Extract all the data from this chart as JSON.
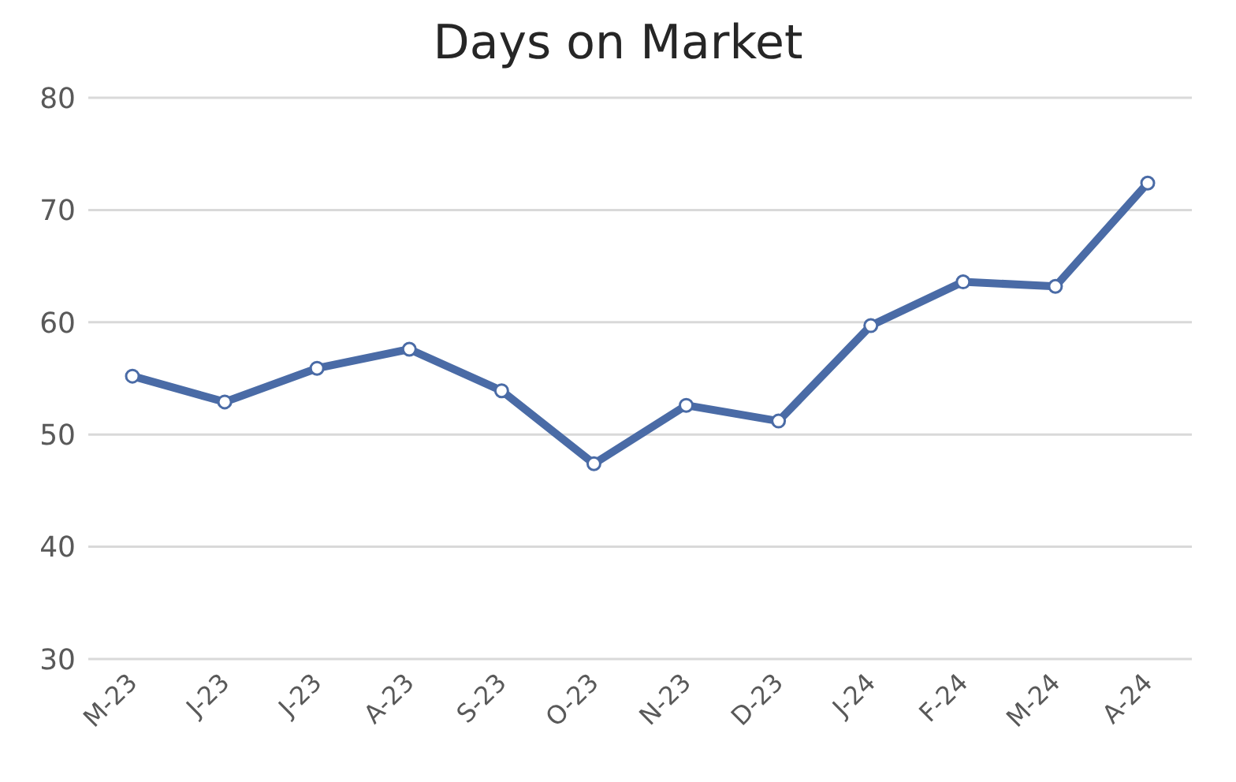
{
  "chart_data": {
    "type": "line",
    "title": "Days on Market",
    "categories": [
      "M-23",
      "J-23",
      "J-23",
      "A-23",
      "S-23",
      "O-23",
      "N-23",
      "D-23",
      "J-24",
      "F-24",
      "M-24",
      "A-24"
    ],
    "series": [
      {
        "color": "#4a6ba6",
        "values": [
          55.2,
          52.9,
          55.9,
          57.6,
          53.9,
          47.4,
          52.6,
          51.2,
          59.7,
          63.6,
          63.2,
          72.4
        ]
      }
    ],
    "ylim": [
      30,
      80
    ],
    "yticks": [
      30,
      40,
      50,
      60,
      70,
      80
    ],
    "grid": "y",
    "marker": "circle",
    "line_style": "solid",
    "legend": false
  }
}
